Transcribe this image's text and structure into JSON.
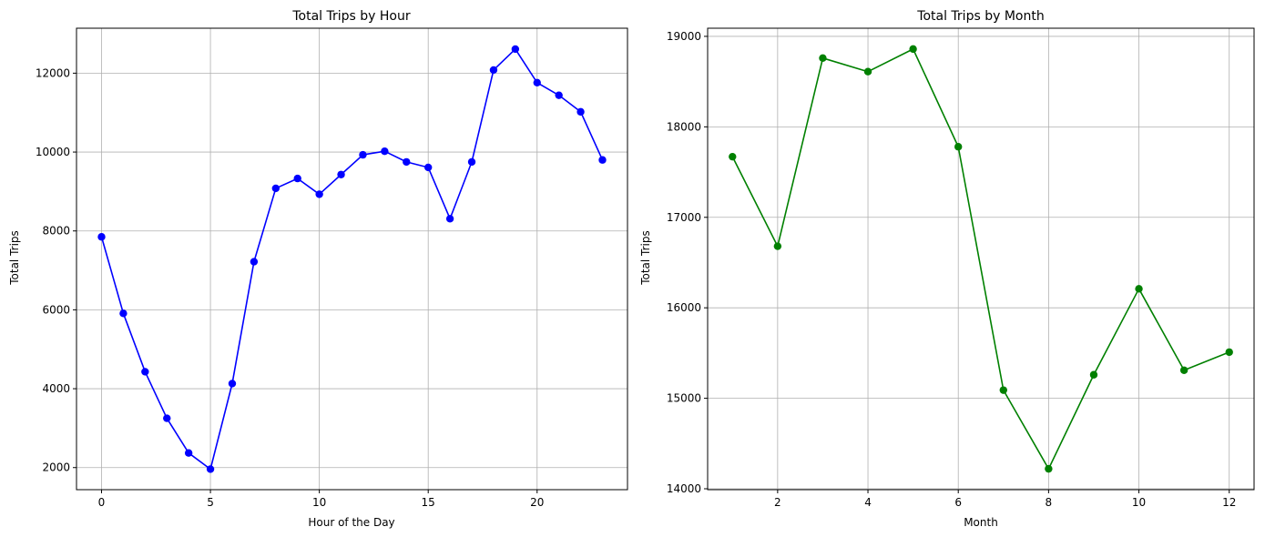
{
  "chart_data": [
    {
      "type": "line",
      "title": "Total Trips by Hour",
      "xlabel": "Hour of the Day",
      "ylabel": "Total Trips",
      "xlim": [
        -1.15,
        24.15
      ],
      "ylim": [
        1440,
        13140
      ],
      "xticks": [
        0,
        5,
        10,
        15,
        20
      ],
      "yticks": [
        2000,
        4000,
        6000,
        8000,
        10000,
        12000
      ],
      "grid": true,
      "color": "#0000ff",
      "series": [
        {
          "x": [
            0,
            1,
            2,
            3,
            4,
            5,
            6,
            7,
            8,
            9,
            10,
            11,
            12,
            13,
            14,
            15,
            16,
            17,
            18,
            19,
            20,
            21,
            22,
            23
          ],
          "values": [
            7850,
            5910,
            4430,
            3250,
            2370,
            1960,
            4130,
            7220,
            9080,
            9330,
            8930,
            9430,
            9930,
            10020,
            9750,
            9610,
            8310,
            9750,
            12080,
            12610,
            11760,
            11440,
            11020,
            9800
          ]
        }
      ]
    },
    {
      "type": "line",
      "title": "Total Trips by Month",
      "xlabel": "Month",
      "ylabel": "Total Trips",
      "xlim": [
        0.45,
        12.55
      ],
      "ylim": [
        13990,
        19090
      ],
      "xticks": [
        2,
        4,
        6,
        8,
        10,
        12
      ],
      "yticks": [
        14000,
        15000,
        16000,
        17000,
        18000,
        19000
      ],
      "grid": true,
      "color": "#008000",
      "series": [
        {
          "x": [
            1,
            2,
            3,
            4,
            5,
            6,
            7,
            8,
            9,
            10,
            11,
            12
          ],
          "values": [
            17670,
            16680,
            18760,
            18610,
            18860,
            17780,
            15090,
            14220,
            15260,
            16210,
            15310,
            15510
          ]
        }
      ]
    }
  ]
}
